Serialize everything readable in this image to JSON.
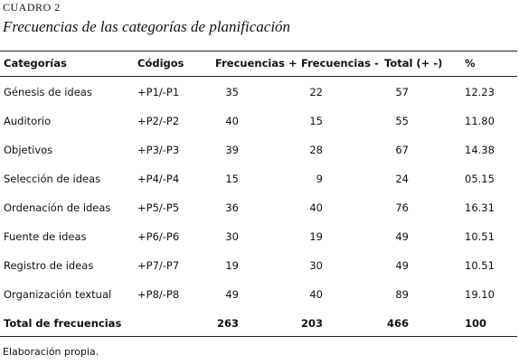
{
  "header": {
    "label": "CUADRO 2",
    "title": "Frecuencias de las categorías de planificación"
  },
  "table": {
    "columns": [
      "Categorías",
      "Códigos",
      "Frecuencias +",
      "Frecuencias -",
      "Total (+ -)",
      "%"
    ],
    "rows": [
      [
        "Génesis de ideas",
        "+P1/-P1",
        "35",
        "22",
        "57",
        "12.23"
      ],
      [
        "Auditorio",
        "+P2/-P2",
        "40",
        "15",
        "55",
        "11.80"
      ],
      [
        "Objetivos",
        "+P3/-P3",
        "39",
        "28",
        "67",
        "14.38"
      ],
      [
        "Selección de ideas",
        "+P4/-P4",
        "15",
        "9",
        "24",
        "05.15"
      ],
      [
        "Ordenación de ideas",
        "+P5/-P5",
        "36",
        "40",
        "76",
        "16.31"
      ],
      [
        "Fuente de ideas",
        "+P6/-P6",
        "30",
        "19",
        "49",
        "10.51"
      ],
      [
        "Registro de ideas",
        "+P7/-P7",
        "19",
        "30",
        "49",
        "10.51"
      ],
      [
        "Organización textual",
        "+P8/-P8",
        "49",
        "40",
        "89",
        "19.10"
      ]
    ],
    "total": {
      "label": "Total de frecuencias",
      "cells": [
        "263",
        "203",
        "466",
        "100"
      ]
    }
  },
  "footer": "Elaboración propia."
}
